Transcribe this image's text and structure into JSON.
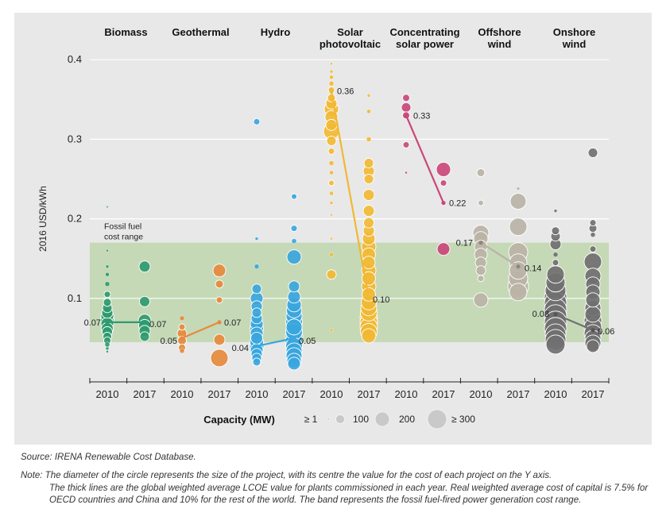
{
  "colors": {
    "Biomass": "#2e9a6e",
    "Geothermal": "#e58a3c",
    "Hydro": "#3aa6dd",
    "Solar photovoltaic": "#f1b833",
    "Concentrating solar power": "#c9487a",
    "Offshore wind": "#bab3a6",
    "Onshore wind": "#707070",
    "band": "#c5d9b6",
    "panel": "#e8e8e8"
  },
  "chart_data": {
    "type": "scatter",
    "ylabel": "2016 USD/kWh",
    "ylim": [
      0,
      0.4
    ],
    "yticks": [
      "0.1",
      "0.2",
      "0.3",
      "0.4"
    ],
    "grid": true,
    "band": {
      "label_line1": "Fossil fuel",
      "label_line2": "cost range",
      "y_min": 0.045,
      "y_max": 0.17
    },
    "x_labels": [
      "2010",
      "2017"
    ],
    "technologies": [
      {
        "name": "Biomass",
        "name_line1": "Biomass",
        "name_line2": "",
        "avg": {
          "2010": 0.07,
          "2017": 0.07
        },
        "avg_labels": {
          "2010": "0.07",
          "2017": "0.07"
        },
        "projects": {
          "2010": [
            [
              0.215,
              2
            ],
            [
              0.16,
              3
            ],
            [
              0.14,
              4
            ],
            [
              0.13,
              5
            ],
            [
              0.118,
              6
            ],
            [
              0.105,
              8
            ],
            [
              0.095,
              10
            ],
            [
              0.088,
              12
            ],
            [
              0.082,
              14
            ],
            [
              0.078,
              16
            ],
            [
              0.073,
              17
            ],
            [
              0.068,
              16
            ],
            [
              0.062,
              15
            ],
            [
              0.058,
              13
            ],
            [
              0.052,
              11
            ],
            [
              0.047,
              9
            ],
            [
              0.042,
              6
            ],
            [
              0.037,
              4
            ],
            [
              0.033,
              3
            ]
          ],
          "2017": [
            [
              0.14,
              14
            ],
            [
              0.096,
              13
            ],
            [
              0.072,
              16
            ],
            [
              0.066,
              15
            ],
            [
              0.059,
              14
            ],
            [
              0.052,
              12
            ]
          ]
        }
      },
      {
        "name": "Geothermal",
        "name_line1": "Geothermal",
        "name_line2": "",
        "avg": {
          "2010": 0.05,
          "2017": 0.07
        },
        "avg_labels": {
          "2010": "0.05",
          "2017": "0.07"
        },
        "projects": {
          "2010": [
            [
              0.075,
              6
            ],
            [
              0.064,
              8
            ],
            [
              0.056,
              12
            ],
            [
              0.047,
              11
            ],
            [
              0.038,
              9
            ],
            [
              0.034,
              6
            ]
          ],
          "2017": [
            [
              0.135,
              16
            ],
            [
              0.118,
              10
            ],
            [
              0.098,
              8
            ],
            [
              0.048,
              14
            ],
            [
              0.025,
              22
            ]
          ]
        }
      },
      {
        "name": "Hydro",
        "name_line1": "Hydro",
        "name_line2": "",
        "avg": {
          "2010": 0.04,
          "2017": 0.05
        },
        "avg_labels": {
          "2010": "0.04",
          "2017": "0.05"
        },
        "projects": {
          "2010": [
            [
              0.322,
              8
            ],
            [
              0.175,
              4
            ],
            [
              0.14,
              6
            ],
            [
              0.112,
              12
            ],
            [
              0.1,
              16
            ],
            [
              0.09,
              14
            ],
            [
              0.082,
              12
            ],
            [
              0.075,
              14
            ],
            [
              0.068,
              16
            ],
            [
              0.062,
              17
            ],
            [
              0.056,
              16
            ],
            [
              0.05,
              15
            ],
            [
              0.045,
              17
            ],
            [
              0.04,
              18
            ],
            [
              0.035,
              16
            ],
            [
              0.03,
              14
            ],
            [
              0.025,
              12
            ],
            [
              0.02,
              10
            ]
          ],
          "2017": [
            [
              0.228,
              7
            ],
            [
              0.188,
              8
            ],
            [
              0.172,
              6
            ],
            [
              0.152,
              18
            ],
            [
              0.115,
              14
            ],
            [
              0.102,
              16
            ],
            [
              0.092,
              18
            ],
            [
              0.085,
              19
            ],
            [
              0.078,
              20
            ],
            [
              0.07,
              21
            ],
            [
              0.064,
              20
            ],
            [
              0.058,
              21
            ],
            [
              0.052,
              22
            ],
            [
              0.046,
              22
            ],
            [
              0.04,
              21
            ],
            [
              0.034,
              20
            ],
            [
              0.028,
              20
            ],
            [
              0.022,
              18
            ],
            [
              0.018,
              16
            ]
          ]
        }
      },
      {
        "name": "Solar photovoltaic",
        "name_line1": "Solar",
        "name_line2": "photovoltaic",
        "avg": {
          "2010": 0.36,
          "2017": 0.1
        },
        "avg_labels": {
          "2010": "0.36",
          "2017": "0.10"
        },
        "projects": {
          "2010": [
            [
              0.395,
              3
            ],
            [
              0.385,
              4
            ],
            [
              0.378,
              5
            ],
            [
              0.37,
              6
            ],
            [
              0.362,
              8
            ],
            [
              0.352,
              10
            ],
            [
              0.345,
              14
            ],
            [
              0.338,
              18
            ],
            [
              0.328,
              16
            ],
            [
              0.318,
              14
            ],
            [
              0.31,
              20
            ],
            [
              0.298,
              12
            ],
            [
              0.285,
              8
            ],
            [
              0.27,
              6
            ],
            [
              0.258,
              5
            ],
            [
              0.245,
              7
            ],
            [
              0.232,
              5
            ],
            [
              0.22,
              4
            ],
            [
              0.205,
              3
            ],
            [
              0.175,
              3
            ],
            [
              0.155,
              5
            ],
            [
              0.13,
              12
            ],
            [
              0.06,
              4
            ]
          ],
          "2017": [
            [
              0.355,
              4
            ],
            [
              0.335,
              5
            ],
            [
              0.3,
              6
            ],
            [
              0.27,
              12
            ],
            [
              0.26,
              14
            ],
            [
              0.25,
              12
            ],
            [
              0.23,
              14
            ],
            [
              0.21,
              14
            ],
            [
              0.195,
              13
            ],
            [
              0.185,
              14
            ],
            [
              0.175,
              16
            ],
            [
              0.165,
              18
            ],
            [
              0.155,
              17
            ],
            [
              0.145,
              16
            ],
            [
              0.135,
              18
            ],
            [
              0.125,
              17
            ],
            [
              0.115,
              18
            ],
            [
              0.105,
              17
            ],
            [
              0.095,
              19
            ],
            [
              0.088,
              20
            ],
            [
              0.082,
              21
            ],
            [
              0.076,
              22
            ],
            [
              0.07,
              22
            ],
            [
              0.064,
              22
            ],
            [
              0.058,
              21
            ],
            [
              0.053,
              18
            ]
          ]
        }
      },
      {
        "name": "Concentrating solar power",
        "name_line1": "Concentrating",
        "name_line2": "solar power",
        "avg": {
          "2010": 0.33,
          "2017": 0.22
        },
        "avg_labels": {
          "2010": "0.33",
          "2017": "0.22"
        },
        "projects": {
          "2010": [
            [
              0.352,
              9
            ],
            [
              0.34,
              12
            ],
            [
              0.33,
              9
            ],
            [
              0.293,
              8
            ],
            [
              0.258,
              3
            ]
          ],
          "2017": [
            [
              0.262,
              18
            ],
            [
              0.245,
              8
            ],
            [
              0.162,
              16
            ]
          ]
        }
      },
      {
        "name": "Offshore wind",
        "name_line1": "Offshore",
        "name_line2": "wind",
        "avg": {
          "2010": 0.17,
          "2017": 0.14
        },
        "avg_labels": {
          "2010": "0.17",
          "2017": "0.14"
        },
        "projects": {
          "2010": [
            [
              0.258,
              10
            ],
            [
              0.22,
              7
            ],
            [
              0.182,
              20
            ],
            [
              0.175,
              18
            ],
            [
              0.165,
              16
            ],
            [
              0.155,
              16
            ],
            [
              0.145,
              14
            ],
            [
              0.135,
              12
            ],
            [
              0.125,
              8
            ],
            [
              0.098,
              18
            ]
          ],
          "2017": [
            [
              0.238,
              4
            ],
            [
              0.222,
              20
            ],
            [
              0.19,
              22
            ],
            [
              0.158,
              24
            ],
            [
              0.145,
              22
            ],
            [
              0.135,
              22
            ],
            [
              0.125,
              24
            ],
            [
              0.115,
              26
            ],
            [
              0.108,
              22
            ]
          ]
        }
      },
      {
        "name": "Onshore wind",
        "name_line1": "Onshore",
        "name_line2": "wind",
        "avg": {
          "2010": 0.08,
          "2017": 0.06
        },
        "avg_labels": {
          "2010": "0.08",
          "2017": "0.06"
        },
        "projects": {
          "2010": [
            [
              0.21,
              4
            ],
            [
              0.185,
              10
            ],
            [
              0.178,
              12
            ],
            [
              0.168,
              14
            ],
            [
              0.155,
              6
            ],
            [
              0.145,
              8
            ],
            [
              0.13,
              22
            ],
            [
              0.12,
              24
            ],
            [
              0.11,
              26
            ],
            [
              0.102,
              28
            ],
            [
              0.094,
              28
            ],
            [
              0.086,
              28
            ],
            [
              0.078,
              28
            ],
            [
              0.07,
              28
            ],
            [
              0.062,
              28
            ],
            [
              0.055,
              26
            ],
            [
              0.048,
              26
            ],
            [
              0.042,
              24
            ]
          ],
          "2017": [
            [
              0.283,
              12
            ],
            [
              0.195,
              8
            ],
            [
              0.188,
              10
            ],
            [
              0.18,
              6
            ],
            [
              0.162,
              8
            ],
            [
              0.146,
              22
            ],
            [
              0.128,
              20
            ],
            [
              0.118,
              18
            ],
            [
              0.108,
              18
            ],
            [
              0.098,
              18
            ],
            [
              0.088,
              20
            ],
            [
              0.08,
              20
            ],
            [
              0.072,
              22
            ],
            [
              0.064,
              22
            ],
            [
              0.056,
              22
            ],
            [
              0.05,
              20
            ],
            [
              0.044,
              20
            ],
            [
              0.04,
              16
            ]
          ]
        }
      }
    ],
    "capacity_legend": {
      "title": "Capacity (MW)",
      "items": [
        {
          "label": "≥ 1",
          "size": 3
        },
        {
          "label": "100",
          "size": 11
        },
        {
          "label": "200",
          "size": 18
        },
        {
          "label": "≥ 300",
          "size": 24
        }
      ]
    }
  },
  "source_text": "Source: IRENA Renewable Cost Database.",
  "note_line1": "Note: The diameter of the circle represents the size of the project, with its centre the value for the cost of each project on the Y axis.",
  "note_rest": "The thick lines are the global weighted average LCOE value for plants commissioned in each year. Real weighted average cost of capital is 7.5% for OECD countries and China and 10% for the rest of the world. The band represents the fossil fuel-fired power generation cost range."
}
